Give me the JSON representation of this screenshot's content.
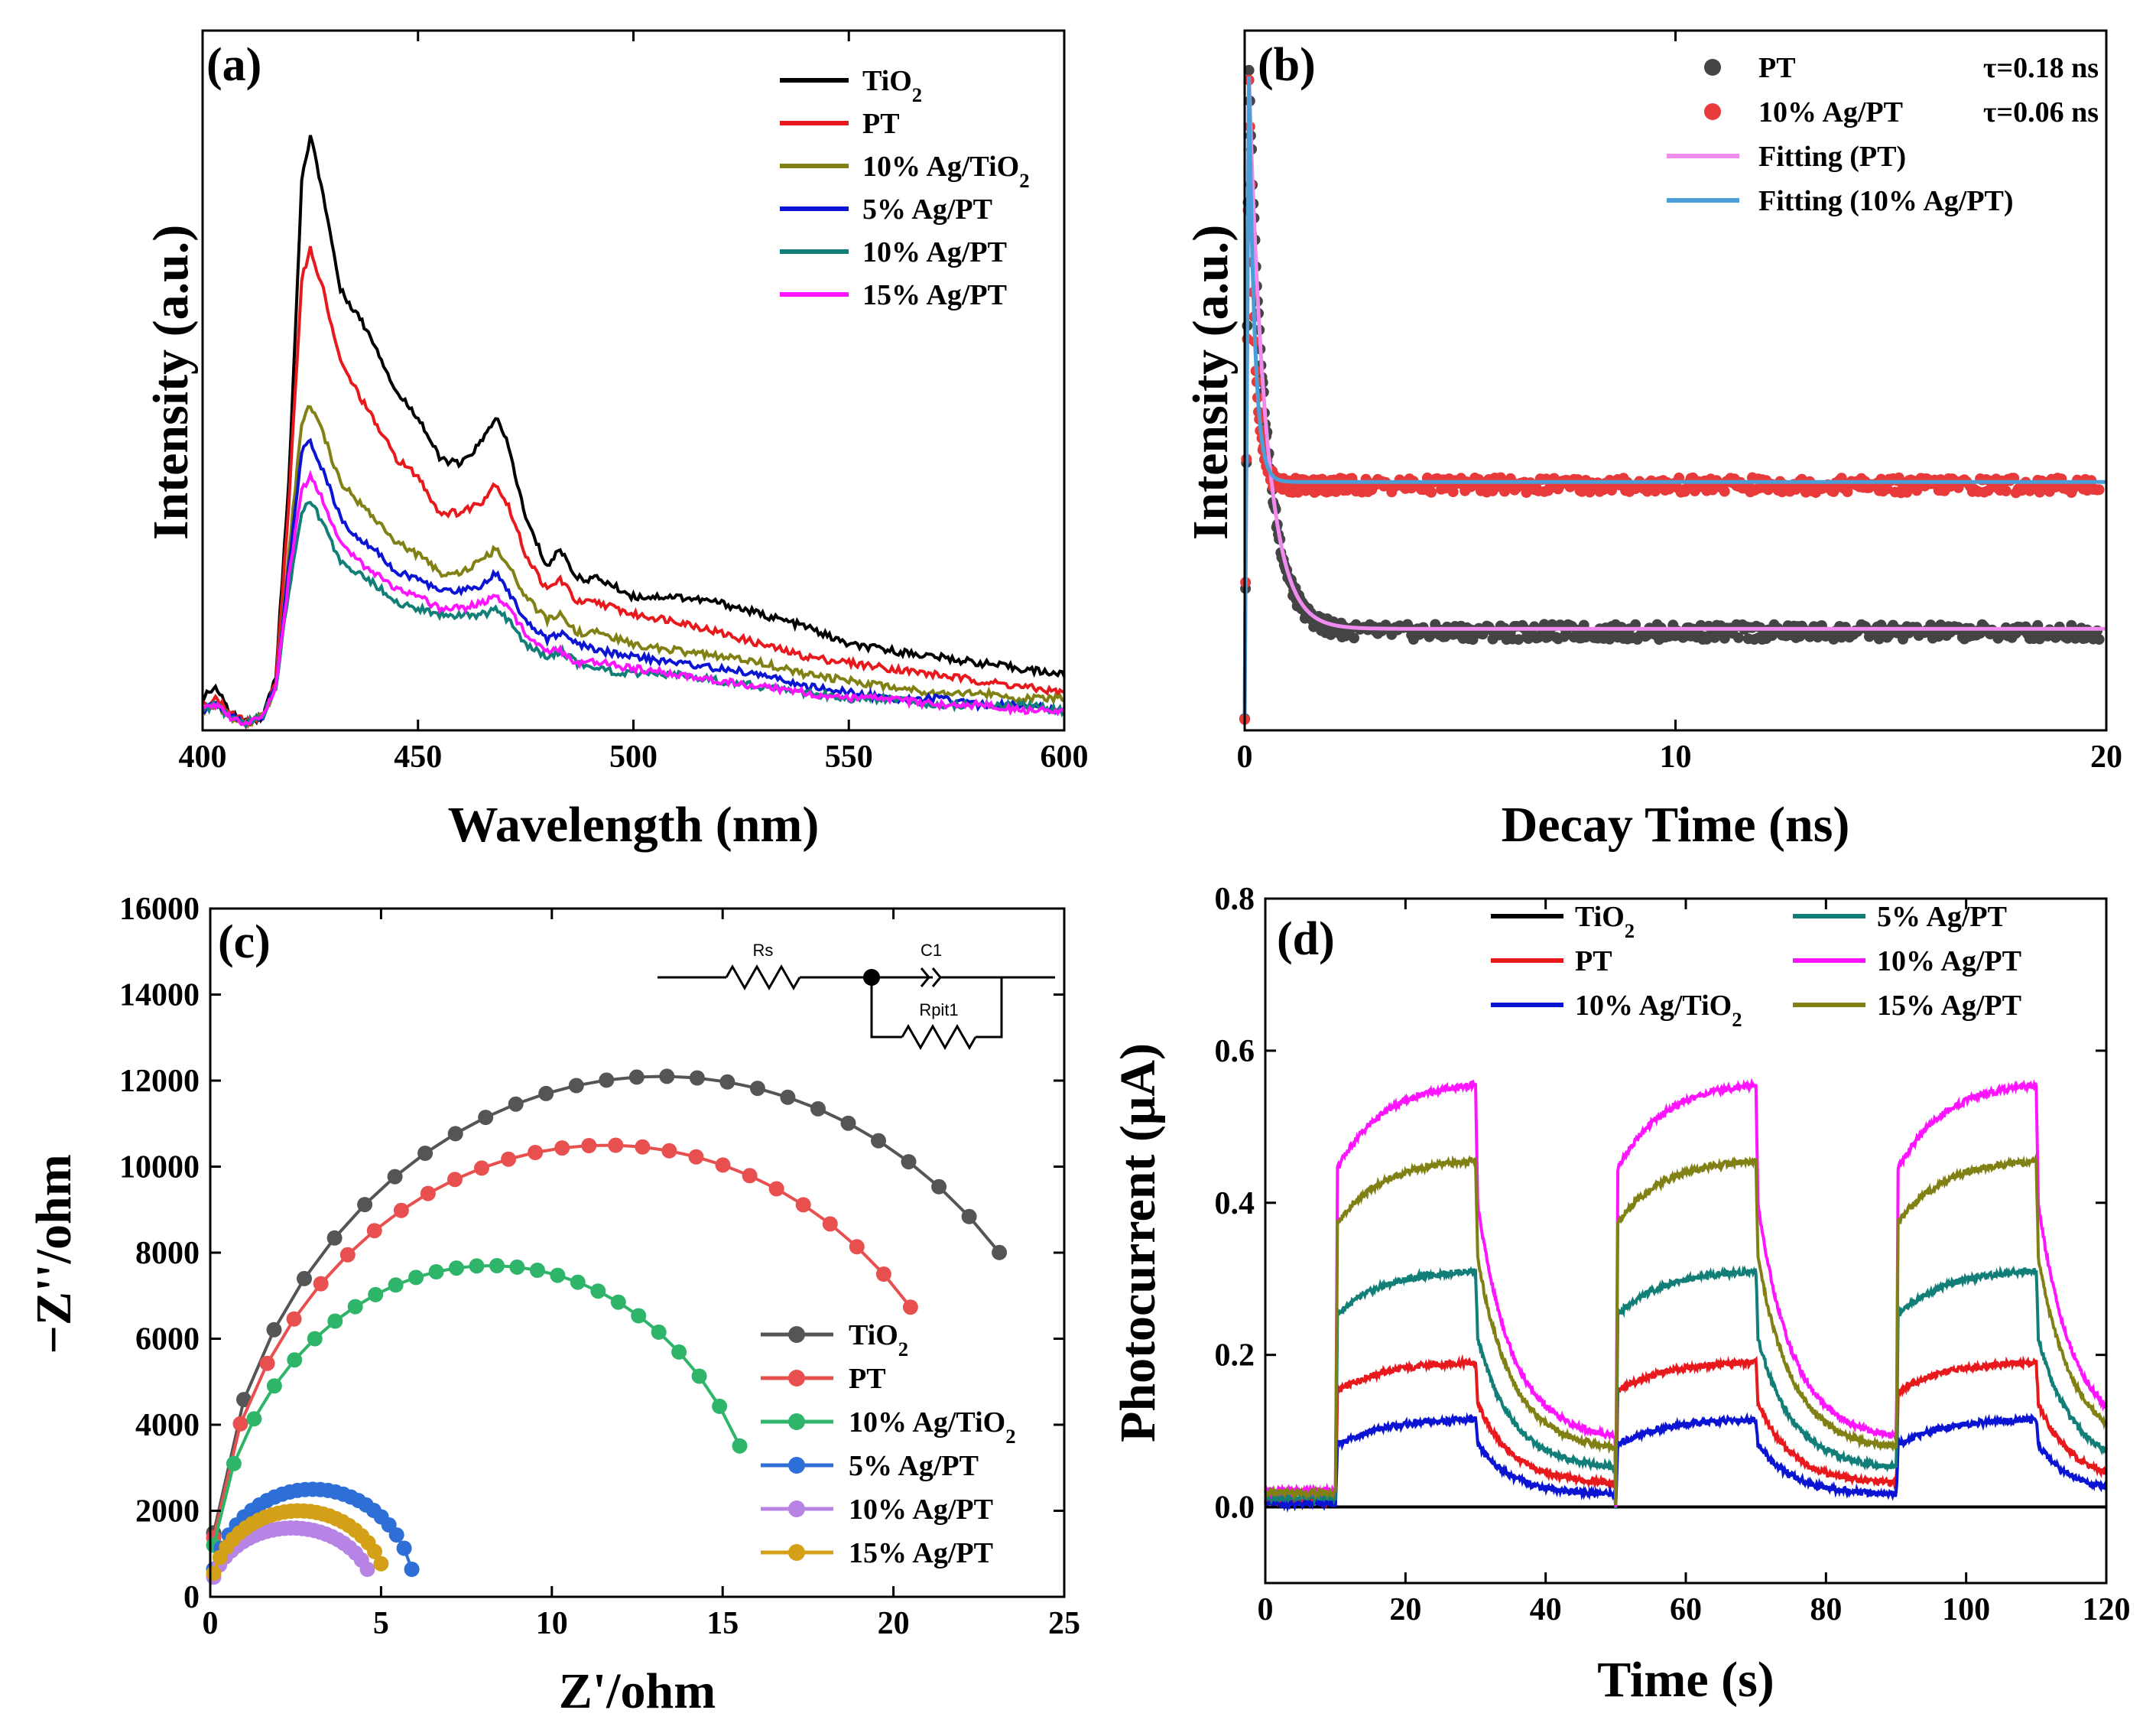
{
  "chart_data": [
    {
      "panel": "(a)",
      "type": "line",
      "xlabel": "Wavelength (nm)",
      "ylabel": "Intensity (a.u.)",
      "xlim": [
        400,
        600
      ],
      "ylim": [
        0,
        100
      ],
      "xticks": [
        400,
        450,
        500,
        550,
        600
      ],
      "yticks_shown": false,
      "series": [
        {
          "name": "TiO2",
          "label_main": "TiO",
          "label_sub": "2",
          "color": "#000000",
          "x": [
            400,
            403,
            406,
            410,
            414,
            417,
            420,
            423,
            425,
            428,
            432,
            436,
            440,
            445,
            450,
            455,
            460,
            465,
            468,
            471,
            475,
            480,
            483,
            487,
            492,
            500,
            510,
            520,
            530,
            540,
            550,
            560,
            570,
            580,
            590,
            600
          ],
          "y": [
            4,
            6,
            2,
            0,
            1,
            8,
            40,
            90,
            98,
            88,
            72,
            68,
            63,
            55,
            51,
            44,
            43,
            47,
            51,
            46,
            34,
            26,
            29,
            24,
            24,
            21,
            21,
            20,
            18,
            16,
            13,
            12,
            11,
            10,
            9,
            8
          ]
        },
        {
          "name": "PT",
          "color": "#e8191c",
          "x": [
            400,
            403,
            406,
            410,
            414,
            417,
            420,
            423,
            425,
            428,
            432,
            436,
            440,
            445,
            450,
            455,
            460,
            465,
            468,
            471,
            475,
            480,
            483,
            487,
            492,
            500,
            510,
            520,
            530,
            540,
            550,
            560,
            570,
            580,
            590,
            600
          ],
          "y": [
            3,
            4,
            2,
            0,
            1,
            7,
            36,
            74,
            79,
            72,
            60,
            55,
            50,
            44,
            41,
            35,
            35,
            37,
            40,
            36,
            28,
            22,
            24,
            20,
            20,
            18,
            17,
            15,
            13,
            11,
            10,
            9,
            8,
            7,
            6,
            5
          ]
        },
        {
          "name": "10% Ag/TiO2",
          "label_main": "10% Ag/TiO",
          "label_sub": "2",
          "color": "#808014",
          "x": [
            400,
            403,
            406,
            410,
            414,
            417,
            420,
            423,
            425,
            428,
            432,
            436,
            440,
            445,
            450,
            455,
            460,
            465,
            468,
            471,
            475,
            480,
            483,
            487,
            492,
            500,
            510,
            520,
            530,
            540,
            550,
            560,
            570,
            580,
            590,
            600
          ],
          "y": [
            2,
            3,
            1,
            0,
            1,
            6,
            28,
            50,
            53,
            48,
            40,
            37,
            34,
            30,
            28,
            25,
            25,
            27,
            29,
            26,
            21,
            17,
            18,
            15,
            15,
            13,
            12,
            11,
            10,
            8,
            7,
            6,
            5,
            5,
            4,
            4
          ]
        },
        {
          "name": "5%   Ag/PT",
          "color": "#0a14d2",
          "x": [
            400,
            403,
            406,
            410,
            414,
            417,
            420,
            423,
            425,
            428,
            432,
            436,
            440,
            445,
            450,
            455,
            460,
            465,
            468,
            471,
            475,
            480,
            483,
            487,
            492,
            500,
            510,
            520,
            530,
            540,
            550,
            560,
            570,
            580,
            590,
            600
          ],
          "y": [
            2,
            3,
            1,
            0,
            1,
            6,
            26,
            45,
            47,
            42,
            34,
            31,
            29,
            25,
            24,
            22,
            22,
            23,
            25,
            22,
            17,
            14,
            15,
            13,
            12,
            11,
            10,
            9,
            8,
            6,
            5,
            4,
            4,
            3,
            3,
            2
          ]
        },
        {
          "name": "10% Ag/PT",
          "color": "#127e78",
          "x": [
            400,
            403,
            406,
            410,
            414,
            417,
            420,
            423,
            425,
            428,
            432,
            436,
            440,
            445,
            450,
            455,
            460,
            465,
            468,
            471,
            475,
            480,
            483,
            487,
            492,
            500,
            510,
            520,
            530,
            540,
            550,
            560,
            570,
            580,
            590,
            600
          ],
          "y": [
            2,
            3,
            1,
            0,
            1,
            6,
            22,
            35,
            37,
            33,
            27,
            25,
            23,
            20,
            19,
            18,
            18,
            18,
            19,
            17,
            13,
            11,
            12,
            10,
            9,
            8,
            8,
            7,
            6,
            5,
            4,
            4,
            3,
            3,
            3,
            2
          ]
        },
        {
          "name": "15% Ag/PT",
          "color": "#ff14ff",
          "x": [
            400,
            403,
            406,
            410,
            414,
            417,
            420,
            423,
            425,
            428,
            432,
            436,
            440,
            445,
            450,
            455,
            460,
            465,
            468,
            471,
            475,
            480,
            483,
            487,
            492,
            500,
            510,
            520,
            530,
            540,
            550,
            560,
            570,
            580,
            590,
            600
          ],
          "y": [
            2,
            3,
            1,
            0,
            1,
            6,
            24,
            39,
            41,
            37,
            30,
            27,
            25,
            22,
            21,
            19,
            19,
            20,
            21,
            19,
            15,
            12,
            12,
            10,
            10,
            9,
            8,
            7,
            6,
            5,
            4,
            4,
            3,
            3,
            2,
            2
          ]
        }
      ]
    },
    {
      "panel": "(b)",
      "type": "scatter",
      "xlabel": "Decay Time (ns)",
      "ylabel": "Intensity (a.u.)",
      "xlim": [
        0,
        20
      ],
      "ylim": [
        0,
        100
      ],
      "xticks": [
        0,
        10,
        20
      ],
      "yticks_shown": false,
      "series": [
        {
          "name": "PT",
          "tau": "τ=0.18 ns",
          "color": "#444444",
          "kind": "scatter",
          "decay": 0.18,
          "plateau": 13,
          "peak": 100
        },
        {
          "name": "10% Ag/PT",
          "tau": "τ=0.06 ns",
          "color": "#e83a3a",
          "kind": "scatter",
          "decay": 0.06,
          "plateau": 36,
          "peak": 100
        },
        {
          "name": "Fitting (PT)",
          "color": "#f08cf0",
          "kind": "line",
          "decay": 0.18,
          "plateau": 13.5,
          "peak": 100
        },
        {
          "name": "Fitting (10% Ag/PT)",
          "color": "#4a9fd8",
          "kind": "line",
          "decay": 0.06,
          "plateau": 36.5,
          "peak": 100
        }
      ]
    },
    {
      "panel": "(c)",
      "type": "line",
      "xlabel": "Z'/ohm",
      "ylabel": "−Z''/ohm",
      "xlim": [
        0,
        25
      ],
      "ylim": [
        0,
        16000
      ],
      "xticks": [
        0,
        5,
        10,
        15,
        20,
        25
      ],
      "yticks": [
        0,
        2000,
        4000,
        6000,
        8000,
        10000,
        12000,
        14000,
        16000
      ],
      "circuit": {
        "rs": "Rs",
        "c1": "C1",
        "rpit": "Rpit1"
      },
      "series": [
        {
          "name": "TiO2",
          "label_main": "TiO",
          "label_sub": "2",
          "color": "#555555",
          "center": 13.2,
          "radius": 13.2,
          "ymax": 12100,
          "end_x": 23.1
        },
        {
          "name": "PT",
          "color": "#e85050",
          "center": 11.6,
          "radius": 11.6,
          "ymax": 10500,
          "end_x": 20.5
        },
        {
          "name": "10% Ag/TiO2",
          "label_main": "10% Ag/TiO",
          "label_sub": "2",
          "color": "#2fb56a",
          "center": 8.2,
          "radius": 8.2,
          "ymax": 7700,
          "end_x": 15.5
        },
        {
          "name": "5%   Ag/PT",
          "color": "#2d6fd6",
          "center": 3.0,
          "radius": 3.0,
          "ymax": 2500,
          "end_x": 5.9
        },
        {
          "name": "10% Ag/PT",
          "color": "#b784e6",
          "center": 2.4,
          "radius": 2.4,
          "ymax": 1600,
          "end_x": 4.6
        },
        {
          "name": "15% Ag/PT",
          "color": "#d4a017",
          "center": 2.6,
          "radius": 2.6,
          "ymax": 2000,
          "end_x": 5.0
        }
      ]
    },
    {
      "panel": "(d)",
      "type": "line",
      "xlabel": "Time (s)",
      "ylabel": "Photocurrent (μA)",
      "xlim": [
        0,
        120
      ],
      "ylim": [
        -0.1,
        0.8
      ],
      "xticks": [
        0,
        20,
        40,
        60,
        80,
        100,
        120
      ],
      "yticks": [
        "0.0",
        "0.2",
        "0.4",
        "0.6",
        "0.8"
      ],
      "light_on": [
        [
          10,
          30
        ],
        [
          50,
          70
        ],
        [
          90,
          110
        ]
      ],
      "series": [
        {
          "name": "TiO2",
          "label_main": "TiO",
          "label_sub": "2",
          "color": "#000000",
          "on_start": 0.0,
          "on_end": 0.0
        },
        {
          "name": "PT",
          "color": "#e8191c",
          "on_start": 0.15,
          "on_end": 0.19
        },
        {
          "name": "10% Ag/TiO2",
          "label_main": "10% Ag/TiO",
          "label_sub": "2",
          "color": "#0a14d2",
          "on_start": 0.08,
          "on_end": 0.115
        },
        {
          "name": "5%   Ag/PT",
          "color": "#127e78",
          "on_start": 0.25,
          "on_end": 0.31
        },
        {
          "name": "10% Ag/PT",
          "color": "#ff14ff",
          "on_start": 0.44,
          "on_end": 0.555
        },
        {
          "name": "15% Ag/PT",
          "color": "#808014",
          "on_start": 0.37,
          "on_end": 0.455
        }
      ]
    }
  ]
}
